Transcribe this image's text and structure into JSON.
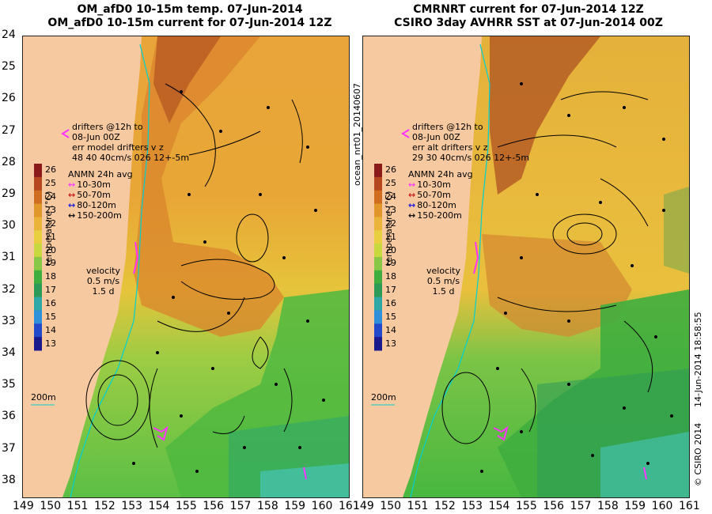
{
  "left_panel": {
    "title_line1": "OM_afD0 10-15m temp. 07-Jun-2014",
    "title_line2": "OM_afD0 10-15m current for 07-Jun-2014 12Z",
    "drifters_label": "drifters @12h to",
    "drifters_date": "08-Jun 00Z",
    "err_line": "err model drifters v z",
    "err_values": "48  40    40cm/s 026 12+-5m",
    "isobath_label": "200m"
  },
  "right_panel": {
    "title_line1": "CMRNRT current for 07-Jun-2014 12Z",
    "title_line2": "CSIRO 3day AVHRR SST at 07-Jun-2014 00Z",
    "drifters_label": "drifters @12h to",
    "drifters_date": "08-Jun 00Z",
    "err_line": "err alt drifters v z",
    "err_values": "29 30 40cm/s 026 12+-5m",
    "isobath_label": "200m"
  },
  "colorbar": {
    "title": "temperature (°C)",
    "ticks": [
      "26",
      "25",
      "24",
      "23",
      "22",
      "21",
      "20",
      "19",
      "18",
      "17",
      "16",
      "15",
      "14",
      "13"
    ],
    "colors": [
      "#8b1a1a",
      "#b5471e",
      "#cf6d20",
      "#e0962a",
      "#eab43a",
      "#e7cf3f",
      "#c8d940",
      "#88c846",
      "#3fae3e",
      "#2e9a57",
      "#2fa7a7",
      "#2f8fd8",
      "#2249c9",
      "#1a1a8c"
    ]
  },
  "anmn_legend": {
    "title": "ANMN 24h avg",
    "items": [
      {
        "label": "10-30m",
        "color": "#ff44ff"
      },
      {
        "label": "50-70m",
        "color": "#cc2222"
      },
      {
        "label": "80-120m",
        "color": "#2222dd"
      },
      {
        "label": "150-200m",
        "color": "#111111"
      }
    ]
  },
  "velocity_legend": {
    "label": "velocity",
    "speed": "0.5 m/s",
    "time": "1.5 d"
  },
  "axes": {
    "lat_labels": [
      "24",
      "25",
      "26",
      "27",
      "28",
      "29",
      "30",
      "31",
      "32",
      "33",
      "34",
      "35",
      "36",
      "37",
      "38"
    ],
    "lon_labels": [
      "149",
      "150",
      "151",
      "152",
      "153",
      "154",
      "155",
      "156",
      "157",
      "158",
      "159",
      "160",
      "161"
    ],
    "lat_range": [
      24,
      38.5
    ],
    "lon_range": [
      149,
      161
    ]
  },
  "side_text": {
    "vertical_id": "ocean_nrt01_20140607",
    "timestamp": "14-Jun-2014 18:58:55",
    "copyright": "© CSIRO 2014"
  },
  "colors": {
    "land": "#f7c9a0",
    "coast_line": "#00d0d0",
    "drifter": "#ff33ff"
  }
}
